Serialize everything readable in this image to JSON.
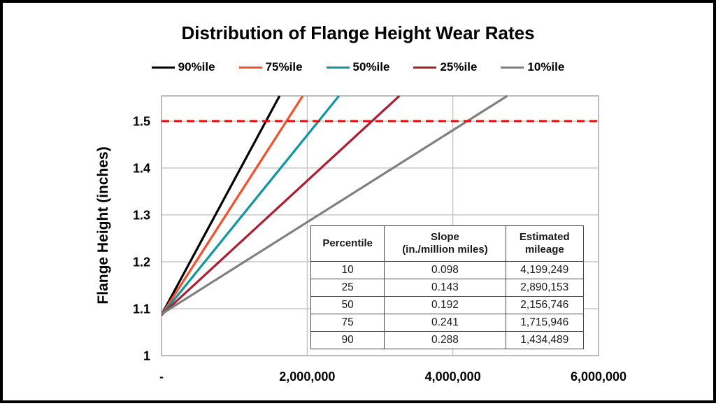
{
  "page": {
    "background": "#ffffff",
    "frame_border_color": "#000000"
  },
  "chart_data": {
    "type": "line",
    "title": "Distribution of Flange Height Wear Rates",
    "xlabel": "",
    "ylabel": "Flange Height (inches)",
    "xlim": [
      0,
      6000000
    ],
    "ylim": [
      1.0,
      1.5537
    ],
    "grid": true,
    "gridline_color": "#bfbfbf",
    "axis_border_color": "#a6a6a6",
    "legend_position": "top",
    "x_ticks": [
      {
        "value": 0,
        "label": "-"
      },
      {
        "value": 2000000,
        "label": "2,000,000"
      },
      {
        "value": 4000000,
        "label": "4,000,000"
      },
      {
        "value": 6000000,
        "label": "6,000,000"
      }
    ],
    "y_ticks": [
      {
        "value": 1.0,
        "label": "1"
      },
      {
        "value": 1.1,
        "label": "1.1"
      },
      {
        "value": 1.2,
        "label": "1.2"
      },
      {
        "value": 1.3,
        "label": "1.3"
      },
      {
        "value": 1.4,
        "label": "1.4"
      },
      {
        "value": 1.5,
        "label": "1.5"
      }
    ],
    "reference_line": {
      "y": 1.5,
      "color": "#ff0000",
      "style": "dashed"
    },
    "series": [
      {
        "name": "90%ile",
        "color": "#000000",
        "slope_in_per_million_miles": 0.288,
        "estimated_mileage": 1434489,
        "start_height": 1.087,
        "end_height": 1.5
      },
      {
        "name": "75%ile",
        "color": "#f4502c",
        "slope_in_per_million_miles": 0.241,
        "estimated_mileage": 1715946,
        "start_height": 1.086,
        "end_height": 1.5
      },
      {
        "name": "50%ile",
        "color": "#0f96a0",
        "slope_in_per_million_miles": 0.192,
        "estimated_mileage": 2156746,
        "start_height": 1.086,
        "end_height": 1.5
      },
      {
        "name": "25%ile",
        "color": "#ae1c32",
        "slope_in_per_million_miles": 0.143,
        "estimated_mileage": 2890153,
        "start_height": 1.087,
        "end_height": 1.5
      },
      {
        "name": "10%ile",
        "color": "#808080",
        "slope_in_per_million_miles": 0.098,
        "estimated_mileage": 4199249,
        "start_height": 1.088,
        "end_height": 1.5
      }
    ]
  },
  "table": {
    "headers": [
      "Percentile",
      "Slope\n(in./million miles)",
      "Estimated\nmileage"
    ],
    "rows": [
      [
        "10",
        "0.098",
        "4,199,249"
      ],
      [
        "25",
        "0.143",
        "2,890,153"
      ],
      [
        "50",
        "0.192",
        "2,156,746"
      ],
      [
        "75",
        "0.241",
        "1,715,946"
      ],
      [
        "90",
        "0.288",
        "1,434,489"
      ]
    ]
  }
}
